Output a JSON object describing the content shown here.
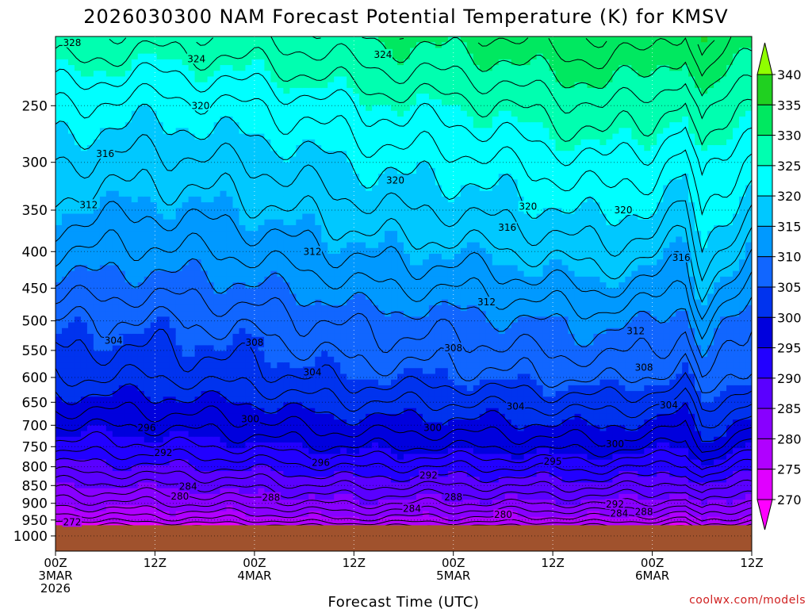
{
  "chart_data": {
    "type": "contour",
    "title": "2026030300 NAM Forecast Potential Temperature (K) for KMSV",
    "xlabel": "Forecast Time (UTC)",
    "ylabel": "",
    "credit": "coolwx.com/models",
    "x_ticks": [
      {
        "hour": 0,
        "lines": [
          "00Z",
          "3MAR",
          "2026"
        ]
      },
      {
        "hour": 12,
        "lines": [
          "12Z"
        ]
      },
      {
        "hour": 24,
        "lines": [
          "00Z",
          "4MAR"
        ]
      },
      {
        "hour": 36,
        "lines": [
          "12Z"
        ]
      },
      {
        "hour": 48,
        "lines": [
          "00Z",
          "5MAR"
        ]
      },
      {
        "hour": 60,
        "lines": [
          "12Z"
        ]
      },
      {
        "hour": 72,
        "lines": [
          "00Z",
          "6MAR"
        ]
      },
      {
        "hour": 84,
        "lines": [
          "12Z"
        ]
      }
    ],
    "x_range_hours": [
      0,
      84
    ],
    "y_ticks_hpa": [
      250,
      300,
      350,
      400,
      450,
      500,
      550,
      600,
      650,
      700,
      750,
      800,
      850,
      900,
      950,
      1000
    ],
    "y_range_hpa": [
      200,
      1050
    ],
    "surface_pressure_hpa": 966,
    "colorbar": {
      "levels": [
        270,
        275,
        280,
        285,
        290,
        295,
        300,
        305,
        310,
        315,
        320,
        325,
        330,
        335,
        340
      ],
      "colors": [
        "#ff00ff",
        "#e000ff",
        "#b000ff",
        "#8800ff",
        "#5a00ff",
        "#2200ff",
        "#0000dd",
        "#0033ee",
        "#1166ff",
        "#0099ff",
        "#00c8ff",
        "#00ffff",
        "#00ffb0",
        "#00e860",
        "#20d020",
        "#90ff00"
      ],
      "labels": [
        "340",
        "335",
        "330",
        "325",
        "320",
        "315",
        "310",
        "305",
        "300",
        "295",
        "290",
        "285",
        "280",
        "275",
        "270"
      ]
    },
    "base_profile": {
      "pressure_hpa": [
        1000,
        950,
        900,
        850,
        800,
        750,
        700,
        650,
        600,
        550,
        500,
        450,
        400,
        350,
        300,
        250,
        200
      ],
      "theta_k": [
        268,
        276,
        281,
        285,
        289,
        293,
        296,
        299,
        302,
        304,
        306,
        309,
        312,
        315,
        318,
        322,
        328
      ]
    },
    "time_anomaly": {
      "hours": [
        0,
        6,
        12,
        18,
        24,
        30,
        36,
        42,
        48,
        54,
        60,
        66,
        72,
        76,
        78,
        80,
        84
      ],
      "upper_k": [
        0,
        -0.5,
        -1,
        -0.5,
        0,
        1,
        2,
        3,
        3,
        4,
        5,
        6,
        5,
        3,
        8,
        6,
        3
      ],
      "lower_k": [
        0,
        0.5,
        1,
        1.5,
        2,
        3,
        3.5,
        3,
        3,
        3,
        3,
        3,
        2.5,
        1.5,
        5,
        4,
        2
      ]
    },
    "contour_labels": [
      {
        "text": "328",
        "hour": 2,
        "hpa": 204
      },
      {
        "text": "324",
        "hour": 17,
        "hpa": 215
      },
      {
        "text": "324",
        "hour": 39.5,
        "hpa": 212
      },
      {
        "text": "320",
        "hour": 17.5,
        "hpa": 250
      },
      {
        "text": "320",
        "hour": 41,
        "hpa": 318
      },
      {
        "text": "320",
        "hour": 57,
        "hpa": 346
      },
      {
        "text": "320",
        "hour": 68.5,
        "hpa": 350
      },
      {
        "text": "316",
        "hour": 6,
        "hpa": 292
      },
      {
        "text": "316",
        "hour": 54.5,
        "hpa": 370
      },
      {
        "text": "316",
        "hour": 75.5,
        "hpa": 408
      },
      {
        "text": "312",
        "hour": 4,
        "hpa": 344
      },
      {
        "text": "312",
        "hour": 31,
        "hpa": 400
      },
      {
        "text": "312",
        "hour": 52,
        "hpa": 471
      },
      {
        "text": "312",
        "hour": 70,
        "hpa": 517
      },
      {
        "text": "308",
        "hour": 24,
        "hpa": 536
      },
      {
        "text": "308",
        "hour": 48,
        "hpa": 546
      },
      {
        "text": "308",
        "hour": 71,
        "hpa": 581
      },
      {
        "text": "304",
        "hour": 7,
        "hpa": 533
      },
      {
        "text": "304",
        "hour": 31,
        "hpa": 590
      },
      {
        "text": "304",
        "hour": 55.5,
        "hpa": 659
      },
      {
        "text": "304",
        "hour": 74,
        "hpa": 656
      },
      {
        "text": "300",
        "hour": 23.5,
        "hpa": 686
      },
      {
        "text": "300",
        "hour": 45.5,
        "hpa": 706
      },
      {
        "text": "300",
        "hour": 67.5,
        "hpa": 744
      },
      {
        "text": "296",
        "hour": 11,
        "hpa": 706
      },
      {
        "text": "296",
        "hour": 32,
        "hpa": 790
      },
      {
        "text": "295",
        "hour": 60,
        "hpa": 787
      },
      {
        "text": "292",
        "hour": 13,
        "hpa": 765
      },
      {
        "text": "292",
        "hour": 45,
        "hpa": 823
      },
      {
        "text": "292",
        "hour": 67.5,
        "hpa": 903
      },
      {
        "text": "288",
        "hour": 26,
        "hpa": 884
      },
      {
        "text": "288",
        "hour": 48,
        "hpa": 882
      },
      {
        "text": "288",
        "hour": 71,
        "hpa": 925
      },
      {
        "text": "284",
        "hour": 16,
        "hpa": 853
      },
      {
        "text": "284",
        "hour": 43,
        "hpa": 916
      },
      {
        "text": "284",
        "hour": 68,
        "hpa": 930
      },
      {
        "text": "280",
        "hour": 15,
        "hpa": 880
      },
      {
        "text": "280",
        "hour": 54,
        "hpa": 934
      },
      {
        "text": "272",
        "hour": 2,
        "hpa": 956
      }
    ]
  }
}
